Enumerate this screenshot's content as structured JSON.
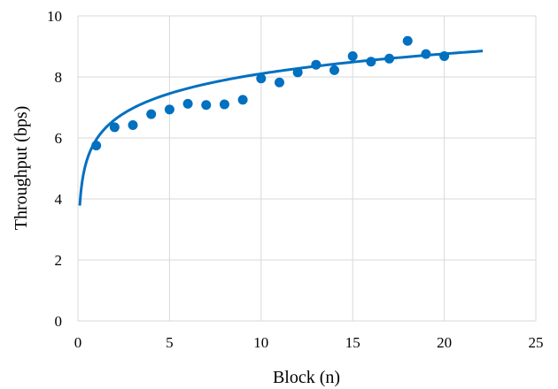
{
  "chart_data": {
    "type": "scatter",
    "xlabel": "Block (n)",
    "ylabel": "Throughput (bps)",
    "xlim": [
      0,
      25
    ],
    "ylim": [
      0,
      10
    ],
    "x_ticks": [
      "0",
      "5",
      "10",
      "15",
      "20",
      "25"
    ],
    "y_ticks": [
      "0",
      "2",
      "4",
      "6",
      "8",
      "10"
    ],
    "grid": true,
    "legend": "none",
    "marker_color": "#0070C0",
    "series": [
      {
        "x": [
          1,
          2,
          3,
          4,
          5,
          6,
          7,
          8,
          9,
          10,
          11,
          12,
          13,
          14,
          15,
          16,
          17,
          18,
          19,
          20
        ],
        "values": [
          5.75,
          6.35,
          6.42,
          6.78,
          6.93,
          7.12,
          7.08,
          7.1,
          7.25,
          7.95,
          7.82,
          8.15,
          8.4,
          8.22,
          8.68,
          8.5,
          8.6,
          9.18,
          8.75,
          8.68
        ]
      }
    ],
    "trendline": {
      "type": "logarithmic",
      "x_range": [
        0.1,
        22.1
      ],
      "y_at_start": 3.78,
      "y_at_end": 8.85
    }
  }
}
